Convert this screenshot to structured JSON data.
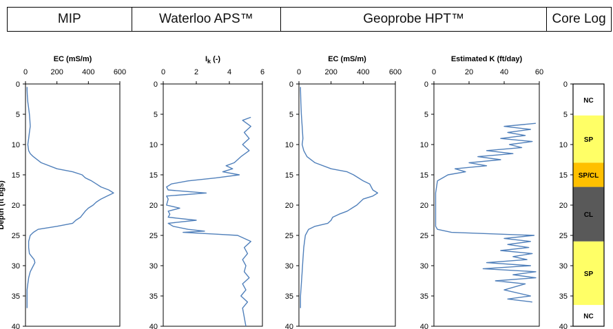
{
  "header": {
    "columns": [
      "MIP",
      "Waterloo APS™",
      "Geoprobe HPT™",
      "Core Log"
    ]
  },
  "colors": {
    "line": "#4f7fba",
    "yellow": "#ffff66",
    "orange": "#ffc000",
    "gray": "#595959"
  },
  "chart_data": [
    {
      "type": "line",
      "title": "EC (mS/m)",
      "ylabel": "Depth (ft bgs)",
      "xlim": [
        0,
        600
      ],
      "xticks": [
        0,
        200,
        400,
        600
      ],
      "ylim": [
        0,
        40
      ],
      "yticks": [
        0,
        5,
        10,
        15,
        20,
        25,
        30,
        35,
        40
      ],
      "series": [
        {
          "x": [
            10,
            10,
            12,
            15,
            20,
            25,
            28,
            30,
            25,
            20,
            15,
            20,
            30,
            50,
            100,
            200,
            300,
            360,
            380,
            420,
            450,
            480,
            530,
            560,
            520,
            480,
            450,
            430,
            400,
            380,
            350,
            320,
            300,
            200,
            80,
            50,
            30,
            20,
            20,
            25,
            40,
            55,
            60,
            50,
            30,
            20,
            15,
            10,
            10,
            10,
            10
          ],
          "y": [
            0.5,
            1,
            2,
            3,
            4,
            5,
            6,
            7,
            8,
            9,
            10,
            11,
            11.5,
            12,
            13,
            14,
            14.5,
            15,
            15.5,
            16,
            16.5,
            17,
            17.5,
            18,
            18.5,
            19,
            19.5,
            20,
            20.5,
            21,
            22,
            22.5,
            23,
            23.5,
            24,
            24.5,
            25,
            26,
            27,
            28,
            28.5,
            29,
            29.5,
            30,
            31,
            32,
            33,
            34,
            35,
            36,
            37
          ]
        }
      ]
    },
    {
      "type": "line",
      "title": "Ik (-)",
      "title_main": "I",
      "title_sub": "k",
      "title_tail": " (-)",
      "xlim": [
        0,
        6
      ],
      "xticks": [
        0,
        2,
        4,
        6
      ],
      "ylim": [
        0,
        40
      ],
      "yticks": [
        0,
        5,
        10,
        15,
        20,
        25,
        30,
        35,
        40
      ],
      "series": [
        {
          "x": [
            5.3,
            4.8,
            5.3,
            4.9,
            5.2,
            4.8,
            5.0,
            5.2,
            4.7,
            4.5,
            4.3,
            3.8,
            4.2,
            3.6,
            4.6,
            3.2,
            1.5,
            0.5,
            0.2,
            0.3,
            2.6,
            0.2,
            0.3,
            0.2,
            1.0,
            0.3,
            0.4,
            0.3,
            2.0,
            0.3,
            0.6,
            1.5,
            2.5,
            1.2,
            2.6,
            3.2,
            4.5,
            5.3,
            4.9,
            5.1,
            4.8,
            5.0,
            4.9,
            5.2,
            4.8,
            5.0,
            4.7,
            5.1,
            4.8,
            5.0
          ],
          "y": [
            5.5,
            6,
            7,
            8,
            9,
            10,
            10.5,
            11,
            12,
            12.5,
            13,
            13.5,
            14,
            14.5,
            15,
            15.5,
            16,
            16.5,
            17,
            17.5,
            18,
            18.5,
            19,
            20,
            20.5,
            21,
            21.5,
            22,
            22.5,
            23,
            23.5,
            24,
            24.3,
            24.5,
            24.7,
            24.8,
            25,
            26,
            27,
            28,
            29,
            30,
            31,
            32,
            33,
            34,
            35,
            36,
            37,
            40
          ]
        }
      ]
    },
    {
      "type": "line",
      "title": "EC (mS/m)",
      "xlim": [
        0,
        600
      ],
      "xticks": [
        0,
        200,
        400,
        600
      ],
      "ylim": [
        0,
        40
      ],
      "yticks": [
        0,
        5,
        10,
        15,
        20,
        25,
        30,
        35,
        40
      ],
      "series": [
        {
          "x": [
            10,
            10,
            12,
            15,
            20,
            25,
            20,
            30,
            50,
            100,
            200,
            300,
            340,
            370,
            400,
            440,
            460,
            490,
            460,
            400,
            360,
            330,
            300,
            250,
            210,
            200,
            180,
            100,
            60,
            40,
            30,
            25,
            20,
            15,
            10,
            10,
            10
          ],
          "y": [
            0.5,
            1,
            3,
            5,
            7,
            9,
            10,
            11,
            12,
            13,
            14,
            14.5,
            15,
            15.5,
            16,
            16.5,
            17.5,
            18,
            18.5,
            19,
            20,
            20.5,
            21,
            21.5,
            22,
            22.5,
            23,
            23.5,
            24,
            25,
            27,
            29,
            31,
            33,
            35,
            36,
            37
          ]
        }
      ]
    },
    {
      "type": "line",
      "title": "Estimated K (ft/day)",
      "xlim": [
        0,
        60
      ],
      "xticks": [
        0,
        20,
        40,
        60
      ],
      "ylim": [
        0,
        40
      ],
      "yticks": [
        0,
        5,
        10,
        15,
        20,
        25,
        30,
        35,
        40
      ],
      "series": [
        {
          "x": [
            58,
            40,
            55,
            42,
            52,
            38,
            56,
            43,
            50,
            30,
            45,
            25,
            38,
            20,
            30,
            12,
            18,
            8,
            5,
            2,
            1,
            1,
            1,
            1,
            2,
            10,
            57,
            40,
            55,
            42,
            54,
            38,
            56,
            45,
            53,
            30,
            55,
            28,
            58,
            45,
            58,
            35,
            52,
            40,
            55,
            42,
            56
          ],
          "y": [
            6.5,
            7,
            7.5,
            8,
            8.5,
            9,
            9.5,
            10,
            10.5,
            11,
            11.5,
            12,
            12.5,
            13,
            13.5,
            14,
            14.5,
            15,
            15.5,
            16,
            18,
            20,
            22,
            23.5,
            24,
            24.5,
            25,
            25.5,
            26,
            26.5,
            27,
            27.5,
            28,
            28.5,
            29,
            29.5,
            30,
            30.5,
            31,
            31.5,
            32,
            32.5,
            33,
            34,
            35,
            35.5,
            36
          ]
        }
      ]
    },
    {
      "type": "table",
      "ylim": [
        0,
        40
      ],
      "yticks": [
        0,
        5,
        10,
        15,
        20,
        25,
        30,
        35,
        40
      ],
      "layers": [
        {
          "label": "NC",
          "top": 0,
          "bottom": 5.2,
          "fill": "#ffffff"
        },
        {
          "label": "SP",
          "top": 5.2,
          "bottom": 13,
          "fill": "#ffff66"
        },
        {
          "label": "SP/CL",
          "top": 13,
          "bottom": 17,
          "fill": "#ffc000"
        },
        {
          "label": "CL",
          "top": 17,
          "bottom": 26,
          "fill": "#595959"
        },
        {
          "label": "SP",
          "top": 26,
          "bottom": 36.5,
          "fill": "#ffff66"
        },
        {
          "label": "NC",
          "top": 36.5,
          "bottom": 40,
          "fill": "#ffffff"
        }
      ]
    }
  ]
}
